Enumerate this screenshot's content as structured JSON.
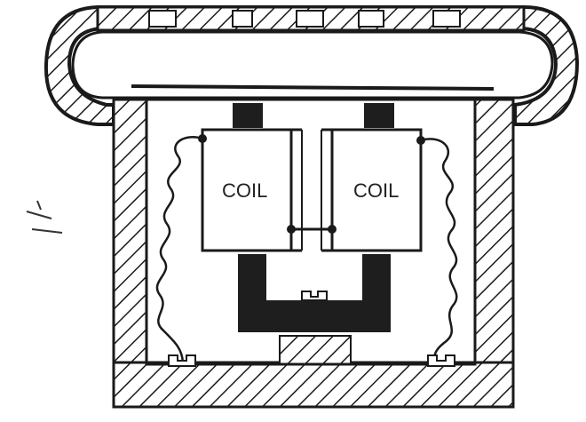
{
  "diagram": {
    "left_coil_label": "COIL",
    "right_coil_label": "COIL"
  },
  "colors": {
    "ink": "#1a1a1a",
    "paper": "#ffffff",
    "magnet": "#1e1e1e"
  }
}
